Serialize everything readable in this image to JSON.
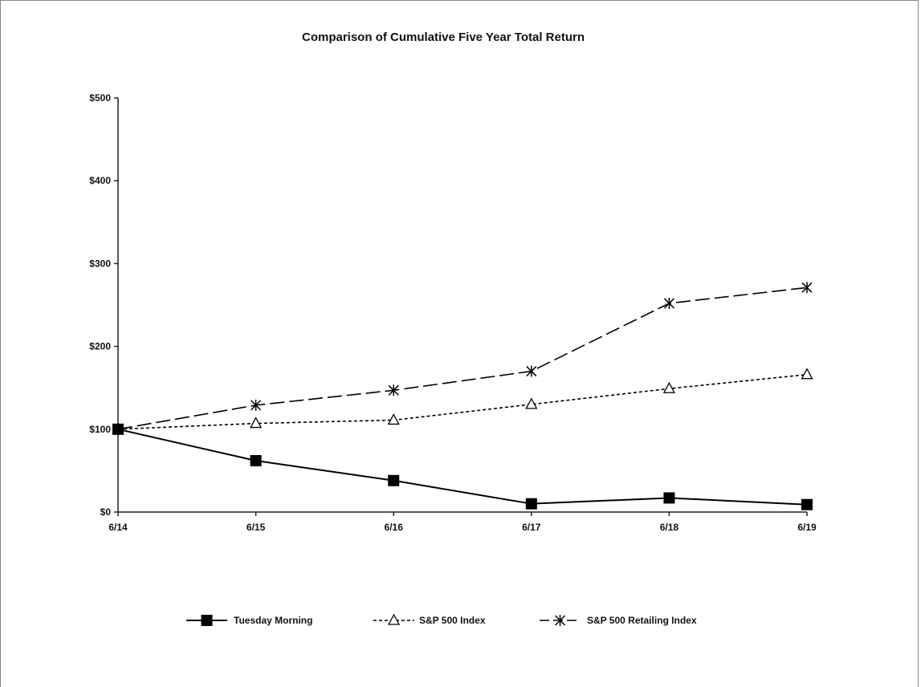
{
  "chart_data": {
    "type": "line",
    "title": "Comparison of Cumulative Five Year Total Return",
    "xlabel": "",
    "ylabel": "",
    "categories": [
      "6/14",
      "6/15",
      "6/16",
      "6/17",
      "6/18",
      "6/19"
    ],
    "ylim": [
      0,
      500
    ],
    "yticks": [
      0,
      100,
      200,
      300,
      400,
      500
    ],
    "ytick_labels": [
      "$0",
      "$100",
      "$200",
      "$300",
      "$400",
      "$500"
    ],
    "grid": false,
    "legend_position": "bottom",
    "series": [
      {
        "name": "Tuesday Morning",
        "values": [
          100,
          62,
          38,
          10,
          17,
          9
        ],
        "marker": "filled-square",
        "line_style": "solid",
        "color": "#000000"
      },
      {
        "name": "S&P 500 Index",
        "values": [
          100,
          107,
          111,
          130,
          149,
          166
        ],
        "marker": "open-triangle",
        "line_style": "dotted",
        "color": "#000000"
      },
      {
        "name": "S&P 500 Retailing Index",
        "values": [
          100,
          129,
          147,
          170,
          252,
          271
        ],
        "marker": "star",
        "line_style": "dashed",
        "color": "#000000"
      }
    ]
  }
}
